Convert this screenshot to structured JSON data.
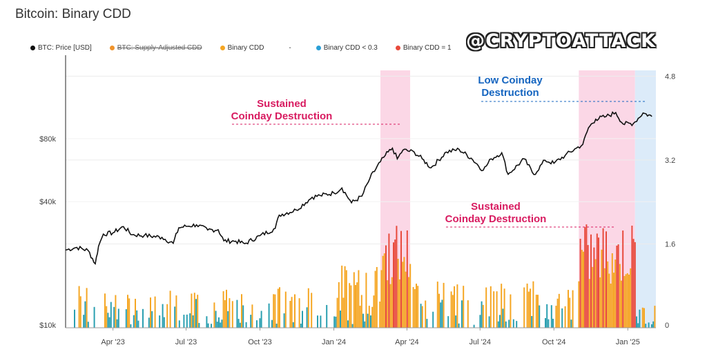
{
  "title": "Bitcoin: Binary CDD",
  "watermark": "@CRYPTOATTACK",
  "legend": [
    {
      "label": "BTC: Price [USD]",
      "color": "#111111",
      "strike": false
    },
    {
      "label": "BTC: Supply-Adjusted CDD",
      "color": "#f0932b",
      "strike": true
    },
    {
      "label": "Binary CDD",
      "color": "#f5a623",
      "strike": false
    },
    {
      "label": "-",
      "color": "",
      "strike": false
    },
    {
      "label": "Binary CDD < 0.3",
      "color": "#2a9fd6",
      "strike": false
    },
    {
      "label": "Binary CDD = 1",
      "color": "#e84a3c",
      "strike": false
    }
  ],
  "annotations": {
    "sustained_1": [
      "Sustained",
      "Coinday Destruction"
    ],
    "sustained_2": [
      "Sustained",
      "Coinday Destruction"
    ],
    "low": [
      "Low Coinday",
      "Destruction"
    ]
  },
  "colors": {
    "price": "#111111",
    "pink_band": "#fbd7e6",
    "blue_band": "#dcebf9",
    "annotation_pink": "#d81b60",
    "annotation_blue": "#1565c0",
    "bar_orange": "#f5a623",
    "bar_teal": "#2a9fb0",
    "bar_red": "#e84a3c"
  },
  "chart_data": {
    "type": "line",
    "title": "Bitcoin: Binary CDD",
    "x_ticks": [
      "Apr '23",
      "Jul '23",
      "Oct '23",
      "Jan '24",
      "Apr '24",
      "Jul '24",
      "Oct '24",
      "Jan '25"
    ],
    "y_left_ticks": [
      "$10k",
      "$40k",
      "$80k"
    ],
    "y_right_ticks": [
      "0",
      "1.6",
      "3.2",
      "4.8"
    ],
    "y_left_scale": "log",
    "y_left_range": [
      10000,
      200000
    ],
    "y_right_range": [
      0,
      5.2
    ],
    "x_range": [
      "2023-02-01",
      "2025-02-05"
    ],
    "series": [
      {
        "name": "BTC: Price [USD]",
        "points": [
          [
            "2023-02-01",
            23500
          ],
          [
            "2023-02-15",
            24200
          ],
          [
            "2023-03-01",
            23400
          ],
          [
            "2023-03-10",
            20200
          ],
          [
            "2023-03-14",
            24500
          ],
          [
            "2023-03-20",
            28000
          ],
          [
            "2023-04-01",
            28400
          ],
          [
            "2023-04-14",
            30400
          ],
          [
            "2023-04-25",
            27800
          ],
          [
            "2023-05-10",
            27600
          ],
          [
            "2023-06-01",
            27000
          ],
          [
            "2023-06-15",
            25300
          ],
          [
            "2023-06-22",
            30000
          ],
          [
            "2023-07-01",
            30500
          ],
          [
            "2023-07-14",
            31000
          ],
          [
            "2023-07-28",
            29300
          ],
          [
            "2023-08-10",
            29400
          ],
          [
            "2023-08-17",
            26000
          ],
          [
            "2023-09-01",
            25900
          ],
          [
            "2023-09-12",
            25200
          ],
          [
            "2023-10-01",
            27500
          ],
          [
            "2023-10-20",
            29800
          ],
          [
            "2023-10-25",
            34500
          ],
          [
            "2023-11-15",
            36500
          ],
          [
            "2023-12-05",
            42000
          ],
          [
            "2023-12-15",
            42800
          ],
          [
            "2024-01-01",
            44000
          ],
          [
            "2024-01-11",
            46500
          ],
          [
            "2024-01-23",
            39500
          ],
          [
            "2024-02-05",
            42500
          ],
          [
            "2024-02-15",
            51800
          ],
          [
            "2024-02-28",
            62000
          ],
          [
            "2024-03-05",
            66500
          ],
          [
            "2024-03-14",
            72000
          ],
          [
            "2024-03-20",
            64000
          ],
          [
            "2024-03-27",
            70500
          ],
          [
            "2024-04-10",
            69000
          ],
          [
            "2024-04-20",
            64000
          ],
          [
            "2024-05-01",
            58000
          ],
          [
            "2024-05-20",
            69000
          ],
          [
            "2024-06-05",
            71000
          ],
          [
            "2024-06-20",
            64500
          ],
          [
            "2024-07-05",
            56500
          ],
          [
            "2024-07-15",
            64000
          ],
          [
            "2024-07-28",
            68500
          ],
          [
            "2024-08-05",
            54000
          ],
          [
            "2024-08-25",
            64000
          ],
          [
            "2024-09-06",
            53900
          ],
          [
            "2024-09-20",
            63000
          ],
          [
            "2024-10-01",
            61000
          ],
          [
            "2024-10-15",
            66500
          ],
          [
            "2024-10-29",
            72000
          ],
          [
            "2024-11-06",
            75000
          ],
          [
            "2024-11-13",
            90000
          ],
          [
            "2024-11-22",
            99000
          ],
          [
            "2024-12-05",
            102000
          ],
          [
            "2024-12-17",
            106500
          ],
          [
            "2024-12-26",
            94000
          ],
          [
            "2025-01-08",
            94500
          ],
          [
            "2025-01-20",
            106000
          ],
          [
            "2025-01-31",
            102000
          ]
        ]
      },
      {
        "name": "Binary CDD",
        "pattern_by_period": [
          {
            "from": "2023-02-01",
            "to": "2024-01-01",
            "level_max": 0.8,
            "mix": "teal-orange"
          },
          {
            "from": "2024-01-01",
            "to": "2024-02-28",
            "level_max": 1.2,
            "mix": "orange"
          },
          {
            "from": "2024-02-28",
            "to": "2024-04-05",
            "level_max": 2.0,
            "mix": "orange-red"
          },
          {
            "from": "2024-04-05",
            "to": "2024-11-01",
            "level_max": 0.9,
            "mix": "teal-orange"
          },
          {
            "from": "2024-11-01",
            "to": "2025-01-10",
            "level_max": 2.0,
            "mix": "orange-red"
          },
          {
            "from": "2025-01-10",
            "to": "2025-02-05",
            "level_max": 0.5,
            "mix": "teal"
          }
        ]
      }
    ],
    "highlight_bands": [
      {
        "from": "2024-02-28",
        "to": "2024-04-05",
        "color": "pink"
      },
      {
        "from": "2024-11-01",
        "to": "2025-01-10",
        "color": "pink"
      },
      {
        "from": "2025-01-10",
        "to": "2025-02-05",
        "color": "blue"
      }
    ]
  }
}
